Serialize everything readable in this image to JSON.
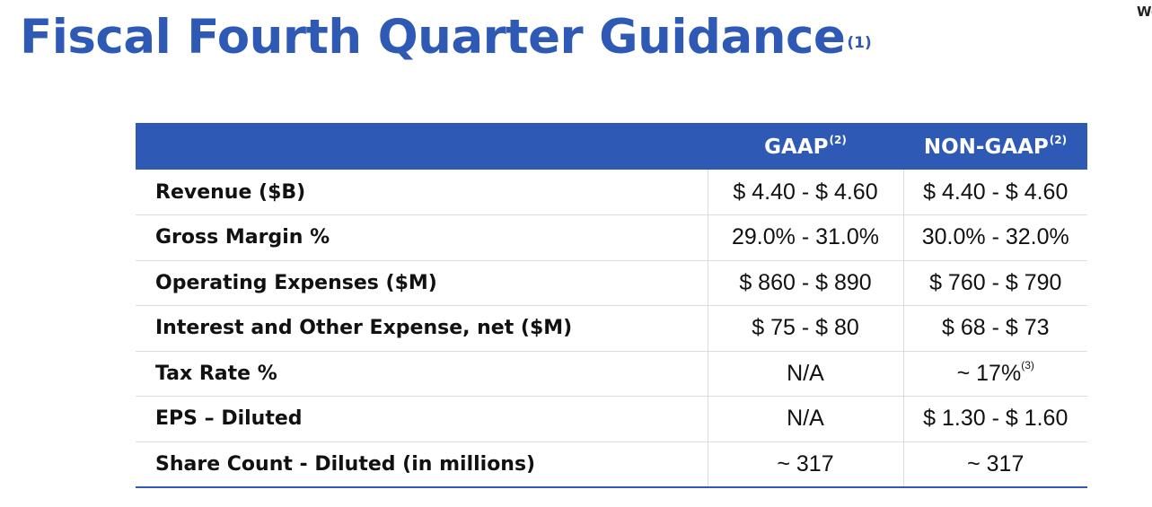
{
  "title": {
    "text": "Fiscal Fourth Quarter Guidance",
    "footnote": "(1)"
  },
  "corner_text": "We",
  "table": {
    "columns": [
      {
        "label": "GAAP",
        "footnote": "(2)"
      },
      {
        "label": "NON-GAAP",
        "footnote": "(2)"
      }
    ],
    "rows": [
      {
        "label": "Revenue ($B)",
        "gaap": "$ 4.40 - $ 4.60",
        "nongaap": "$ 4.40 - $ 4.60",
        "nongaap_footnote": ""
      },
      {
        "label": "Gross Margin %",
        "gaap": "29.0% - 31.0%",
        "nongaap": "30.0% - 32.0%",
        "nongaap_footnote": ""
      },
      {
        "label": "Operating Expenses ($M)",
        "gaap": "$ 860 - $ 890",
        "nongaap": "$ 760 - $ 790",
        "nongaap_footnote": ""
      },
      {
        "label": "Interest and Other Expense, net ($M)",
        "gaap": "$ 75 - $ 80",
        "nongaap": "$ 68 - $ 73",
        "nongaap_footnote": ""
      },
      {
        "label": "Tax Rate %",
        "gaap": "N/A",
        "nongaap": "~ 17%",
        "nongaap_footnote": "(3)"
      },
      {
        "label": "EPS – Diluted",
        "gaap": "N/A",
        "nongaap": "$ 1.30 - $ 1.60",
        "nongaap_footnote": ""
      },
      {
        "label": "Share Count - Diluted (in millions)",
        "gaap": "~ 317",
        "nongaap": "~ 317",
        "nongaap_footnote": ""
      }
    ]
  },
  "colors": {
    "accent": "#2e59b5",
    "text": "#111111",
    "divider": "#dcdcdc"
  }
}
